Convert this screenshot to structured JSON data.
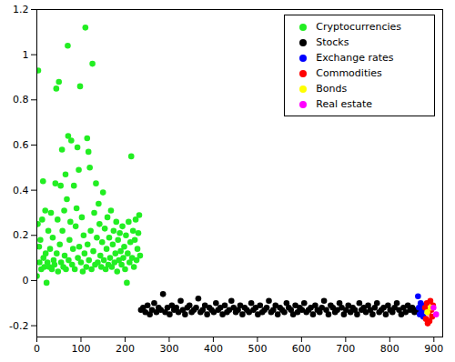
{
  "chart_data": {
    "type": "scatter",
    "xlim": [
      0,
      920
    ],
    "xticks": [
      0,
      100,
      200,
      300,
      400,
      500,
      600,
      700,
      800,
      900
    ],
    "ylim": [
      -0.25,
      1.2
    ],
    "yticks": [
      -0.2,
      0,
      0.2,
      0.4,
      0.6,
      0.8,
      1,
      1.2
    ],
    "grid": false,
    "legend": "top-right",
    "marker": "circle",
    "series": [
      {
        "name": "Cryptocurrencies",
        "color": "#22ee22",
        "x": [
          0,
          2,
          3,
          5,
          6,
          8,
          10,
          12,
          14,
          15,
          17,
          19,
          20,
          22,
          24,
          26,
          28,
          30,
          32,
          34,
          36,
          38,
          40,
          42,
          44,
          45,
          47,
          48,
          50,
          52,
          54,
          55,
          57,
          58,
          60,
          62,
          63,
          65,
          66,
          68,
          70,
          71,
          72,
          74,
          76,
          78,
          80,
          82,
          84,
          86,
          88,
          90,
          92,
          93,
          95,
          96,
          98,
          100,
          102,
          104,
          106,
          108,
          110,
          112,
          114,
          115,
          117,
          118,
          120,
          122,
          124,
          126,
          128,
          130,
          132,
          134,
          136,
          138,
          140,
          142,
          144,
          146,
          148,
          150,
          152,
          154,
          156,
          158,
          160,
          162,
          164,
          166,
          168,
          170,
          172,
          174,
          176,
          178,
          180,
          182,
          184,
          186,
          188,
          190,
          192,
          194,
          196,
          198,
          200,
          202,
          204,
          206,
          208,
          210,
          212,
          214,
          216,
          218,
          220,
          222,
          224,
          226,
          228,
          230,
          232,
          234
        ],
        "values": [
          0.02,
          0.25,
          0.93,
          0.15,
          0.08,
          0.18,
          0.05,
          0.27,
          0.44,
          0.1,
          0.06,
          0.31,
          0.12,
          -0.01,
          0.08,
          0.22,
          0.06,
          0.14,
          0.3,
          0.05,
          0.19,
          0.09,
          0.07,
          0.43,
          0.85,
          0.12,
          0.27,
          0.04,
          0.88,
          0.16,
          0.42,
          0.08,
          0.58,
          0.22,
          0.06,
          0.31,
          0.11,
          0.47,
          0.05,
          0.36,
          1.04,
          0.64,
          0.09,
          0.18,
          0.26,
          0.62,
          0.07,
          0.14,
          0.42,
          0.05,
          0.24,
          0.32,
          0.59,
          0.1,
          0.49,
          0.15,
          0.86,
          0.08,
          0.28,
          0.04,
          0.2,
          0.12,
          1.12,
          0.06,
          0.63,
          0.16,
          0.57,
          0.09,
          0.5,
          0.22,
          0.05,
          0.96,
          0.13,
          0.3,
          0.07,
          0.43,
          0.19,
          0.08,
          0.34,
          0.25,
          0.11,
          0.06,
          0.17,
          0.39,
          0.09,
          0.23,
          0.05,
          0.14,
          0.28,
          0.07,
          0.19,
          0.1,
          0.31,
          0.06,
          0.16,
          0.22,
          0.08,
          0.12,
          0.26,
          0.04,
          0.18,
          0.09,
          0.21,
          0.13,
          0.07,
          0.24,
          0.1,
          0.15,
          0.05,
          0.2,
          -0.01,
          0.12,
          0.26,
          0.08,
          0.17,
          0.55,
          0.1,
          0.22,
          0.06,
          0.18,
          0.27,
          0.09,
          0.14,
          0.21,
          0.29,
          0.11
        ]
      },
      {
        "name": "Stocks",
        "color": "#000000",
        "x": [
          236,
          241,
          246,
          251,
          256,
          261,
          266,
          271,
          276,
          281,
          286,
          291,
          296,
          301,
          306,
          311,
          316,
          321,
          326,
          331,
          336,
          341,
          346,
          351,
          356,
          361,
          366,
          371,
          376,
          381,
          386,
          391,
          396,
          401,
          406,
          411,
          416,
          421,
          426,
          431,
          436,
          441,
          446,
          451,
          456,
          461,
          466,
          471,
          476,
          481,
          486,
          491,
          496,
          501,
          506,
          511,
          516,
          521,
          526,
          531,
          536,
          541,
          546,
          551,
          556,
          561,
          566,
          571,
          576,
          581,
          586,
          591,
          596,
          601,
          606,
          611,
          616,
          621,
          626,
          631,
          636,
          641,
          646,
          651,
          656,
          661,
          666,
          671,
          676,
          681,
          686,
          691,
          696,
          701,
          706,
          711,
          716,
          721,
          726,
          731,
          736,
          741,
          746,
          751,
          756,
          761,
          766,
          771,
          776,
          781,
          786,
          791,
          796,
          801,
          806,
          811,
          816,
          821,
          826,
          831,
          836,
          841,
          846,
          851,
          856,
          861
        ],
        "values": [
          -0.13,
          -0.12,
          -0.14,
          -0.11,
          -0.15,
          -0.13,
          -0.1,
          -0.14,
          -0.12,
          -0.13,
          -0.06,
          -0.14,
          -0.12,
          -0.15,
          -0.11,
          -0.13,
          -0.12,
          -0.14,
          -0.09,
          -0.13,
          -0.15,
          -0.12,
          -0.11,
          -0.14,
          -0.13,
          -0.12,
          -0.08,
          -0.14,
          -0.13,
          -0.11,
          -0.15,
          -0.12,
          -0.13,
          -0.14,
          -0.1,
          -0.13,
          -0.12,
          -0.15,
          -0.11,
          -0.14,
          -0.13,
          -0.09,
          -0.12,
          -0.14,
          -0.13,
          -0.11,
          -0.15,
          -0.12,
          -0.13,
          -0.14,
          -0.1,
          -0.13,
          -0.12,
          -0.15,
          -0.11,
          -0.14,
          -0.13,
          -0.12,
          -0.09,
          -0.14,
          -0.13,
          -0.11,
          -0.15,
          -0.12,
          -0.13,
          -0.14,
          -0.1,
          -0.12,
          -0.13,
          -0.15,
          -0.11,
          -0.14,
          -0.12,
          -0.13,
          -0.1,
          -0.14,
          -0.13,
          -0.12,
          -0.15,
          -0.11,
          -0.13,
          -0.14,
          -0.12,
          -0.09,
          -0.13,
          -0.15,
          -0.11,
          -0.12,
          -0.14,
          -0.13,
          -0.1,
          -0.12,
          -0.15,
          -0.13,
          -0.11,
          -0.14,
          -0.12,
          -0.13,
          -0.15,
          -0.1,
          -0.13,
          -0.12,
          -0.14,
          -0.11,
          -0.13,
          -0.15,
          -0.12,
          -0.1,
          -0.14,
          -0.13,
          -0.12,
          -0.15,
          -0.11,
          -0.13,
          -0.14,
          -0.12,
          -0.1,
          -0.13,
          -0.15,
          -0.12,
          -0.14,
          -0.11,
          -0.13,
          -0.12,
          -0.14,
          -0.13
        ]
      },
      {
        "name": "Exchange rates",
        "color": "#0000ff",
        "x": [
          864,
          866,
          868,
          870,
          872,
          874,
          876,
          878
        ],
        "values": [
          -0.07,
          -0.12,
          -0.15,
          -0.1,
          -0.14,
          -0.11,
          -0.16,
          -0.13
        ]
      },
      {
        "name": "Commodities",
        "color": "#ff0000",
        "x": [
          880,
          882,
          884,
          886,
          888,
          890,
          892,
          894,
          896,
          898
        ],
        "values": [
          -0.12,
          -0.17,
          -0.1,
          -0.19,
          -0.14,
          -0.18,
          -0.09,
          -0.13,
          -0.16,
          -0.11
        ]
      },
      {
        "name": "Bonds",
        "color": "#ffff00",
        "x": [
          885,
          893
        ],
        "values": [
          -0.14,
          -0.12
        ]
      },
      {
        "name": "Real estate",
        "color": "#ff00ff",
        "x": [
          899,
          905
        ],
        "values": [
          -0.12,
          -0.15
        ]
      }
    ]
  }
}
